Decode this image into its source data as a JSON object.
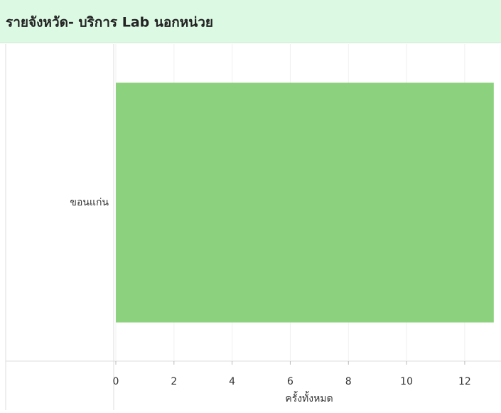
{
  "chart_data": {
    "type": "hbar",
    "title": "รายจังหวัด- บริการ Lab นอกหน่วย",
    "categories": [
      "ขอนแก่น"
    ],
    "values": [
      13
    ],
    "color": "#8cd17d",
    "xlabel": "ครั้งทั้งหมด",
    "xlim": [
      0,
      13.2
    ],
    "xticks": [
      0,
      2,
      4,
      6,
      8,
      10,
      12
    ],
    "grid": true
  }
}
